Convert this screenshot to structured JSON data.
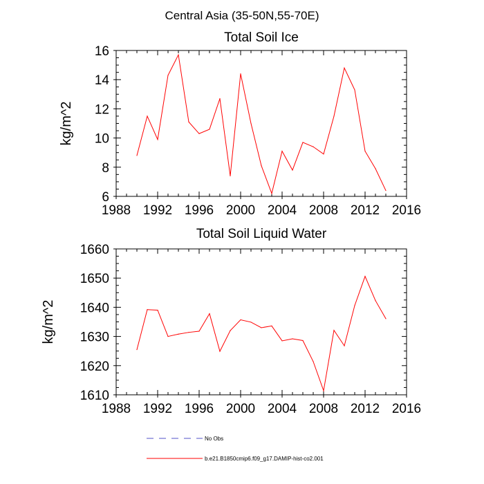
{
  "figure": {
    "suptitle": "Central Asia (35-50N,55-70E)"
  },
  "chart_data": [
    {
      "type": "line",
      "title": "Total Soil Ice",
      "xlabel": "",
      "ylabel": "kg/m^2",
      "xlim": [
        1988,
        2016
      ],
      "ylim": [
        6,
        16
      ],
      "xticks": [
        1988,
        1992,
        1996,
        2000,
        2004,
        2008,
        2012,
        2016
      ],
      "yticks": [
        6,
        8,
        10,
        12,
        14,
        16
      ],
      "grid": false,
      "series": [
        {
          "name": "b.e21.B1850cmip6.f09_g17.DAMIP-hist-co2.001",
          "color": "#ff0000",
          "x": [
            1990,
            1991,
            1992,
            1993,
            1994,
            1995,
            1996,
            1997,
            1998,
            1999,
            2000,
            2001,
            2002,
            2003,
            2004,
            2005,
            2006,
            2007,
            2008,
            2009,
            2010,
            2011,
            2012,
            2013,
            2014
          ],
          "y": [
            8.8,
            11.5,
            9.9,
            14.3,
            15.7,
            11.1,
            10.3,
            10.6,
            12.7,
            7.4,
            14.4,
            11.0,
            8.1,
            6.2,
            9.1,
            7.8,
            9.7,
            9.4,
            8.9,
            11.5,
            14.8,
            13.3,
            9.1,
            7.9,
            6.4
          ]
        }
      ]
    },
    {
      "type": "line",
      "title": "Total Soil Liquid Water",
      "xlabel": "",
      "ylabel": "kg/m^2",
      "xlim": [
        1988,
        2016
      ],
      "ylim": [
        1610,
        1660
      ],
      "xticks": [
        1988,
        1992,
        1996,
        2000,
        2004,
        2008,
        2012,
        2016
      ],
      "yticks": [
        1610,
        1620,
        1630,
        1640,
        1650,
        1660
      ],
      "grid": false,
      "series": [
        {
          "name": "b.e21.B1850cmip6.f09_g17.DAMIP-hist-co2.001",
          "color": "#ff0000",
          "x": [
            1990,
            1991,
            1992,
            1993,
            1994,
            1995,
            1996,
            1997,
            1998,
            1999,
            2000,
            2001,
            2002,
            2003,
            2004,
            2005,
            2006,
            2007,
            2008,
            2009,
            2010,
            2011,
            2012,
            2013,
            2014
          ],
          "y": [
            1625.5,
            1639.2,
            1639.0,
            1630.0,
            1630.8,
            1631.4,
            1631.8,
            1637.8,
            1624.9,
            1632.0,
            1635.7,
            1634.9,
            1633.0,
            1633.6,
            1628.5,
            1629.2,
            1628.6,
            1621.4,
            1611.4,
            1632.1,
            1626.8,
            1640.6,
            1650.6,
            1642.3,
            1636.1
          ]
        }
      ]
    }
  ],
  "legend": {
    "placement": "bottom",
    "items": [
      {
        "label": "No Obs",
        "color": "#5050c8",
        "style": "dashed"
      },
      {
        "label": "b.e21.B1850cmip6.f09_g17.DAMIP-hist-co2.001",
        "color": "#ff0000",
        "style": "solid"
      }
    ]
  }
}
